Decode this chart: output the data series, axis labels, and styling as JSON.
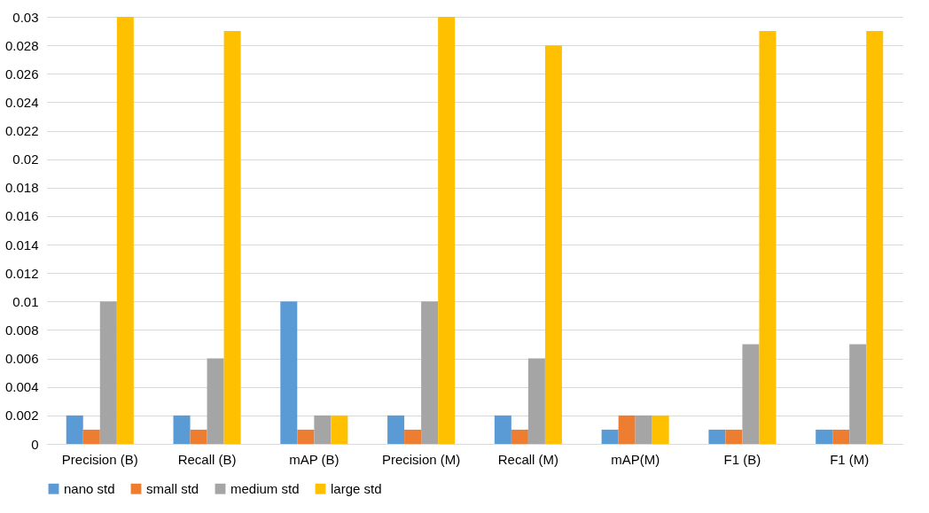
{
  "chart_data": {
    "type": "bar",
    "categories": [
      "Precision (B)",
      "Recall (B)",
      "mAP (B)",
      "Precision (M)",
      "Recall (M)",
      "mAP(M)",
      "F1 (B)",
      "F1 (M)"
    ],
    "series": [
      {
        "name": "nano std",
        "color": "#5b9bd5",
        "values": [
          0.002,
          0.002,
          0.01,
          0.002,
          0.002,
          0.001,
          0.001,
          0.001
        ]
      },
      {
        "name": "small std",
        "color": "#ed7d31",
        "values": [
          0.001,
          0.001,
          0.001,
          0.001,
          0.001,
          0.002,
          0.001,
          0.001
        ]
      },
      {
        "name": "medium std",
        "color": "#a5a5a5",
        "values": [
          0.01,
          0.006,
          0.002,
          0.01,
          0.006,
          0.002,
          0.007,
          0.007
        ]
      },
      {
        "name": "large std",
        "color": "#ffc000",
        "values": [
          0.03,
          0.029,
          0.002,
          0.03,
          0.028,
          0.002,
          0.029,
          0.029
        ]
      }
    ],
    "ylim": [
      0,
      0.03
    ],
    "yticks": [
      0,
      0.002,
      0.004,
      0.006,
      0.008,
      0.01,
      0.012,
      0.014,
      0.016,
      0.018,
      0.02,
      0.022,
      0.024,
      0.026,
      0.028,
      0.03
    ],
    "grid": "y",
    "legend": "bottom"
  }
}
